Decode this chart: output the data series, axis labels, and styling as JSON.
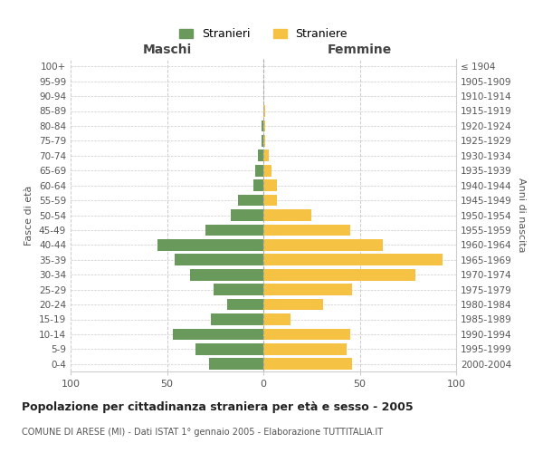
{
  "age_groups": [
    "0-4",
    "5-9",
    "10-14",
    "15-19",
    "20-24",
    "25-29",
    "30-34",
    "35-39",
    "40-44",
    "45-49",
    "50-54",
    "55-59",
    "60-64",
    "65-69",
    "70-74",
    "75-79",
    "80-84",
    "85-89",
    "90-94",
    "95-99",
    "100+"
  ],
  "birth_years": [
    "2000-2004",
    "1995-1999",
    "1990-1994",
    "1985-1989",
    "1980-1984",
    "1975-1979",
    "1970-1974",
    "1965-1969",
    "1960-1964",
    "1955-1959",
    "1950-1954",
    "1945-1949",
    "1940-1944",
    "1935-1939",
    "1930-1934",
    "1925-1929",
    "1920-1924",
    "1915-1919",
    "1910-1914",
    "1905-1909",
    "≤ 1904"
  ],
  "maschi": [
    28,
    35,
    47,
    27,
    19,
    26,
    38,
    46,
    55,
    30,
    17,
    13,
    5,
    4,
    3,
    1,
    1,
    0,
    0,
    0,
    0
  ],
  "femmine": [
    46,
    43,
    45,
    14,
    31,
    46,
    79,
    93,
    62,
    45,
    25,
    7,
    7,
    4,
    3,
    1,
    1,
    1,
    0,
    0,
    0
  ],
  "maschi_color": "#6a9a5b",
  "femmine_color": "#f5c244",
  "bar_height": 0.78,
  "xlim": 100,
  "title": "Popolazione per cittadinanza straniera per età e sesso - 2005",
  "subtitle": "COMUNE DI ARESE (MI) - Dati ISTAT 1° gennaio 2005 - Elaborazione TUTTITALIA.IT",
  "ylabel_left": "Fasce di età",
  "ylabel_right": "Anni di nascita",
  "xlabel_left": "Maschi",
  "xlabel_right": "Femmine",
  "legend_stranieri": "Stranieri",
  "legend_straniere": "Straniere",
  "background_color": "#ffffff",
  "grid_color": "#cccccc"
}
